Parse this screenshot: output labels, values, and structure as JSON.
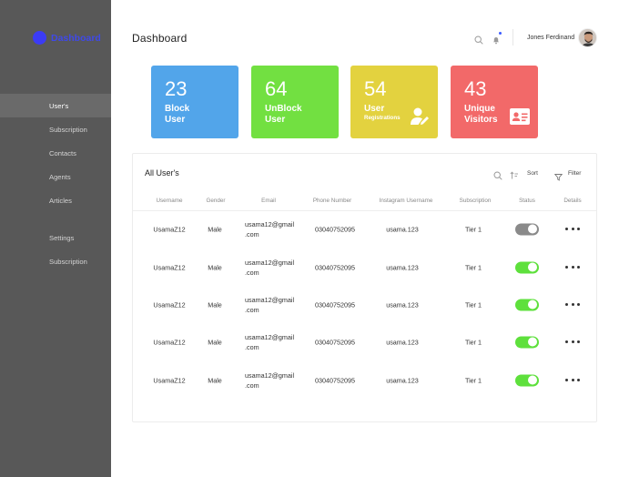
{
  "brand": {
    "label": "Dashboard",
    "color": "#3b3bf5"
  },
  "sidebar": {
    "items": [
      {
        "label": "User's",
        "active": true
      },
      {
        "label": "Subscription"
      },
      {
        "label": "Contacts"
      },
      {
        "label": "Agents"
      },
      {
        "label": "Articles"
      },
      {
        "label": "Settings"
      },
      {
        "label": "Subscription"
      }
    ]
  },
  "header": {
    "title": "Dashboard",
    "user_name": "Jones Ferdinand",
    "icons": [
      "search-icon",
      "bell-icon"
    ]
  },
  "cards": [
    {
      "value": "23",
      "line1": "Block",
      "line2": "User",
      "color": "#52a5ea"
    },
    {
      "value": "64",
      "line1": "UnBlock",
      "line2": "User",
      "color": "#72e041"
    },
    {
      "value": "54",
      "line1": "User",
      "line2": "Registrations",
      "color": "#e3d23f",
      "icon": "user-edit-icon"
    },
    {
      "value": "43",
      "line1": "Unique",
      "line2": "Visitors",
      "color": "#f26969",
      "icon": "contact-card-icon"
    }
  ],
  "table": {
    "title": "All User's",
    "sort_label": "Sort",
    "filter_label": "Filter",
    "columns": [
      "Username",
      "Gender",
      "Email",
      "Phone Number",
      "Instagram Username",
      "Subscription",
      "Status",
      "Details"
    ],
    "rows": [
      {
        "username": "UsamaZ12",
        "gender": "Male",
        "email1": "usama12@gmail",
        "email2": ".com",
        "phone": "03040752095",
        "instagram": "usama.123",
        "subscription": "Tier 1",
        "status": false
      },
      {
        "username": "UsamaZ12",
        "gender": "Male",
        "email1": "usama12@gmail",
        "email2": ".com",
        "phone": "03040752095",
        "instagram": "usama.123",
        "subscription": "Tier 1",
        "status": true
      },
      {
        "username": "UsamaZ12",
        "gender": "Male",
        "email1": "usama12@gmail",
        "email2": ".com",
        "phone": "03040752095",
        "instagram": "usama.123",
        "subscription": "Tier 1",
        "status": true
      },
      {
        "username": "UsamaZ12",
        "gender": "Male",
        "email1": "usama12@gmail",
        "email2": ".com",
        "phone": "03040752095",
        "instagram": "usama.123",
        "subscription": "Tier 1",
        "status": true
      },
      {
        "username": "UsamaZ12",
        "gender": "Male",
        "email1": "usama12@gmail",
        "email2": ".com",
        "phone": "03040752095",
        "instagram": "usama.123",
        "subscription": "Tier 1",
        "status": true
      }
    ]
  },
  "colors": {
    "toggle_on": "#5ee03c",
    "toggle_off": "#8a8a8a",
    "sidebar": "#585858"
  }
}
